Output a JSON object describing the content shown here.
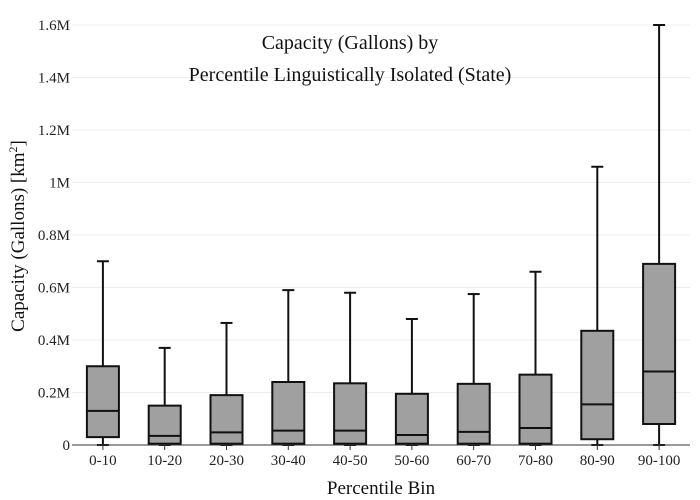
{
  "chart_data": {
    "type": "box",
    "title_line1": "Capacity (Gallons) by",
    "title_line2": "Percentile Linguistically Isolated (State)",
    "xlabel": "Percentile Bin",
    "ylabel_main": "Capacity (Gallons)  [km",
    "ylabel_sup": "2",
    "ylabel_close": "]",
    "ylim": [
      0,
      1600000
    ],
    "yticks": [
      0,
      200000,
      400000,
      600000,
      800000,
      1000000,
      1200000,
      1400000,
      1600000
    ],
    "ytick_labels": [
      "0",
      "0.2M",
      "0.4M",
      "0.6M",
      "0.8M",
      "1M",
      "1.2M",
      "1.4M",
      "1.6M"
    ],
    "grid": true,
    "categories": [
      "0-10",
      "10-20",
      "20-30",
      "30-40",
      "40-50",
      "50-60",
      "60-70",
      "70-80",
      "80-90",
      "90-100"
    ],
    "boxes": [
      {
        "min": 0,
        "q1": 30000,
        "median": 130000,
        "q3": 300000,
        "max": 700000
      },
      {
        "min": 0,
        "q1": 5000,
        "median": 35000,
        "q3": 150000,
        "max": 370000
      },
      {
        "min": 0,
        "q1": 5000,
        "median": 48000,
        "q3": 190000,
        "max": 465000
      },
      {
        "min": 0,
        "q1": 5000,
        "median": 55000,
        "q3": 240000,
        "max": 590000
      },
      {
        "min": 0,
        "q1": 5000,
        "median": 55000,
        "q3": 235000,
        "max": 580000
      },
      {
        "min": 0,
        "q1": 5000,
        "median": 38000,
        "q3": 195000,
        "max": 480000
      },
      {
        "min": 0,
        "q1": 5000,
        "median": 50000,
        "q3": 233000,
        "max": 575000
      },
      {
        "min": 0,
        "q1": 5000,
        "median": 65000,
        "q3": 268000,
        "max": 660000
      },
      {
        "min": 0,
        "q1": 22000,
        "median": 155000,
        "q3": 435000,
        "max": 1060000
      },
      {
        "min": 0,
        "q1": 80000,
        "median": 280000,
        "q3": 690000,
        "max": 1600000
      }
    ],
    "colors": {
      "box_fill": "#a0a0a0",
      "stroke": "#111111",
      "grid": "#ececec"
    }
  }
}
